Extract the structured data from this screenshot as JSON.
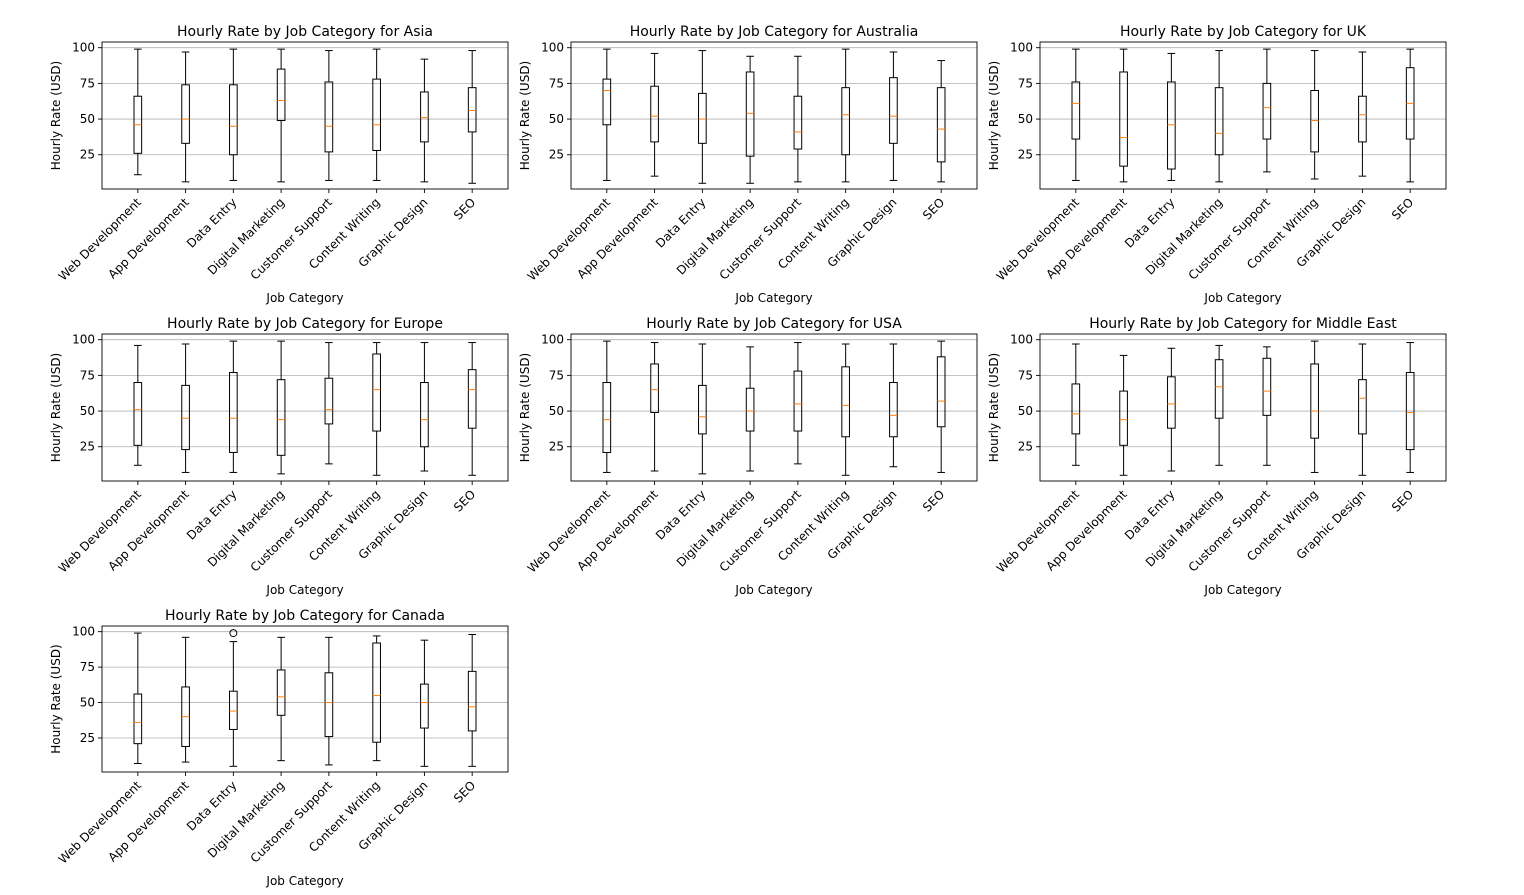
{
  "chart_data": [
    {
      "type": "box",
      "title": "Hourly Rate by Job Category for Asia",
      "xlabel": "Job Category",
      "ylabel": "Hourly Rate (USD)",
      "yticks": [
        25,
        50,
        75,
        100
      ],
      "ylim": [
        1,
        104
      ],
      "grid": "y",
      "categories": [
        "Web Development",
        "App Development",
        "Data Entry",
        "Digital Marketing",
        "Customer Support",
        "Content Writing",
        "Graphic Design",
        "SEO"
      ],
      "boxes": [
        {
          "min": 11,
          "q1": 26,
          "median": 46,
          "q3": 66,
          "max": 99
        },
        {
          "min": 6,
          "q1": 33,
          "median": 50,
          "q3": 74,
          "max": 97
        },
        {
          "min": 7,
          "q1": 25,
          "median": 45,
          "q3": 74,
          "max": 99
        },
        {
          "min": 6,
          "q1": 49,
          "median": 63,
          "q3": 85,
          "max": 99
        },
        {
          "min": 7,
          "q1": 27,
          "median": 45,
          "q3": 76,
          "max": 98
        },
        {
          "min": 7,
          "q1": 28,
          "median": 46,
          "q3": 78,
          "max": 99
        },
        {
          "min": 6,
          "q1": 34,
          "median": 51,
          "q3": 69,
          "max": 92
        },
        {
          "min": 5,
          "q1": 41,
          "median": 56,
          "q3": 72,
          "max": 98
        }
      ],
      "outliers": []
    },
    {
      "type": "box",
      "title": "Hourly Rate by Job Category for Australia",
      "xlabel": "Job Category",
      "ylabel": "Hourly Rate (USD)",
      "yticks": [
        25,
        50,
        75,
        100
      ],
      "ylim": [
        1,
        104
      ],
      "grid": "y",
      "categories": [
        "Web Development",
        "App Development",
        "Data Entry",
        "Digital Marketing",
        "Customer Support",
        "Content Writing",
        "Graphic Design",
        "SEO"
      ],
      "boxes": [
        {
          "min": 7,
          "q1": 46,
          "median": 70,
          "q3": 78,
          "max": 99
        },
        {
          "min": 10,
          "q1": 34,
          "median": 52,
          "q3": 73,
          "max": 96
        },
        {
          "min": 5,
          "q1": 33,
          "median": 50,
          "q3": 68,
          "max": 98
        },
        {
          "min": 5,
          "q1": 24,
          "median": 54,
          "q3": 83,
          "max": 94
        },
        {
          "min": 6,
          "q1": 29,
          "median": 41,
          "q3": 66,
          "max": 94
        },
        {
          "min": 6,
          "q1": 25,
          "median": 53,
          "q3": 72,
          "max": 99
        },
        {
          "min": 7,
          "q1": 33,
          "median": 52,
          "q3": 79,
          "max": 97
        },
        {
          "min": 6,
          "q1": 20,
          "median": 43,
          "q3": 72,
          "max": 91
        }
      ],
      "outliers": []
    },
    {
      "type": "box",
      "title": "Hourly Rate by Job Category for UK",
      "xlabel": "Job Category",
      "ylabel": "Hourly Rate (USD)",
      "yticks": [
        25,
        50,
        75,
        100
      ],
      "ylim": [
        1,
        104
      ],
      "grid": "y",
      "categories": [
        "Web Development",
        "App Development",
        "Data Entry",
        "Digital Marketing",
        "Customer Support",
        "Content Writing",
        "Graphic Design",
        "SEO"
      ],
      "boxes": [
        {
          "min": 7,
          "q1": 36,
          "median": 61,
          "q3": 76,
          "max": 99
        },
        {
          "min": 6,
          "q1": 17,
          "median": 37,
          "q3": 83,
          "max": 99
        },
        {
          "min": 7,
          "q1": 15,
          "median": 46,
          "q3": 76,
          "max": 96
        },
        {
          "min": 6,
          "q1": 25,
          "median": 40,
          "q3": 72,
          "max": 98
        },
        {
          "min": 13,
          "q1": 36,
          "median": 58,
          "q3": 75,
          "max": 99
        },
        {
          "min": 8,
          "q1": 27,
          "median": 49,
          "q3": 70,
          "max": 98
        },
        {
          "min": 10,
          "q1": 34,
          "median": 53,
          "q3": 66,
          "max": 97
        },
        {
          "min": 6,
          "q1": 36,
          "median": 61,
          "q3": 86,
          "max": 99
        }
      ],
      "outliers": []
    },
    {
      "type": "box",
      "title": "Hourly Rate by Job Category for Europe",
      "xlabel": "Job Category",
      "ylabel": "Hourly Rate (USD)",
      "yticks": [
        25,
        50,
        75,
        100
      ],
      "ylim": [
        1,
        104
      ],
      "grid": "y",
      "categories": [
        "Web Development",
        "App Development",
        "Data Entry",
        "Digital Marketing",
        "Customer Support",
        "Content Writing",
        "Graphic Design",
        "SEO"
      ],
      "boxes": [
        {
          "min": 12,
          "q1": 26,
          "median": 51,
          "q3": 70,
          "max": 96
        },
        {
          "min": 7,
          "q1": 23,
          "median": 45,
          "q3": 68,
          "max": 97
        },
        {
          "min": 7,
          "q1": 21,
          "median": 45,
          "q3": 77,
          "max": 99
        },
        {
          "min": 6,
          "q1": 19,
          "median": 44,
          "q3": 72,
          "max": 99
        },
        {
          "min": 13,
          "q1": 41,
          "median": 51,
          "q3": 73,
          "max": 98
        },
        {
          "min": 5,
          "q1": 36,
          "median": 65,
          "q3": 90,
          "max": 98
        },
        {
          "min": 8,
          "q1": 25,
          "median": 44,
          "q3": 70,
          "max": 98
        },
        {
          "min": 5,
          "q1": 38,
          "median": 65,
          "q3": 79,
          "max": 98
        }
      ],
      "outliers": []
    },
    {
      "type": "box",
      "title": "Hourly Rate by Job Category for USA",
      "xlabel": "Job Category",
      "ylabel": "Hourly Rate (USD)",
      "yticks": [
        25,
        50,
        75,
        100
      ],
      "ylim": [
        1,
        104
      ],
      "grid": "y",
      "categories": [
        "Web Development",
        "App Development",
        "Data Entry",
        "Digital Marketing",
        "Customer Support",
        "Content Writing",
        "Graphic Design",
        "SEO"
      ],
      "boxes": [
        {
          "min": 7,
          "q1": 21,
          "median": 44,
          "q3": 70,
          "max": 99
        },
        {
          "min": 8,
          "q1": 49,
          "median": 65,
          "q3": 83,
          "max": 98
        },
        {
          "min": 6,
          "q1": 34,
          "median": 46,
          "q3": 68,
          "max": 97
        },
        {
          "min": 8,
          "q1": 36,
          "median": 50,
          "q3": 66,
          "max": 95
        },
        {
          "min": 13,
          "q1": 36,
          "median": 55,
          "q3": 78,
          "max": 98
        },
        {
          "min": 5,
          "q1": 32,
          "median": 54,
          "q3": 81,
          "max": 97
        },
        {
          "min": 11,
          "q1": 32,
          "median": 47,
          "q3": 70,
          "max": 97
        },
        {
          "min": 7,
          "q1": 39,
          "median": 57,
          "q3": 88,
          "max": 99
        }
      ],
      "outliers": []
    },
    {
      "type": "box",
      "title": "Hourly Rate by Job Category for Middle East",
      "xlabel": "Job Category",
      "ylabel": "Hourly Rate (USD)",
      "yticks": [
        25,
        50,
        75,
        100
      ],
      "ylim": [
        1,
        104
      ],
      "grid": "y",
      "categories": [
        "Web Development",
        "App Development",
        "Data Entry",
        "Digital Marketing",
        "Customer Support",
        "Content Writing",
        "Graphic Design",
        "SEO"
      ],
      "boxes": [
        {
          "min": 12,
          "q1": 34,
          "median": 48,
          "q3": 69,
          "max": 97
        },
        {
          "min": 5,
          "q1": 26,
          "median": 44,
          "q3": 64,
          "max": 89
        },
        {
          "min": 8,
          "q1": 38,
          "median": 55,
          "q3": 74,
          "max": 94
        },
        {
          "min": 12,
          "q1": 45,
          "median": 67,
          "q3": 86,
          "max": 96
        },
        {
          "min": 12,
          "q1": 47,
          "median": 64,
          "q3": 87,
          "max": 95
        },
        {
          "min": 7,
          "q1": 31,
          "median": 50,
          "q3": 83,
          "max": 99
        },
        {
          "min": 5,
          "q1": 34,
          "median": 59,
          "q3": 72,
          "max": 97
        },
        {
          "min": 7,
          "q1": 23,
          "median": 49,
          "q3": 77,
          "max": 98
        }
      ],
      "outliers": []
    },
    {
      "type": "box",
      "title": "Hourly Rate by Job Category for Canada",
      "xlabel": "Job Category",
      "ylabel": "Hourly Rate (USD)",
      "yticks": [
        25,
        50,
        75,
        100
      ],
      "ylim": [
        1,
        104
      ],
      "grid": "y",
      "categories": [
        "Web Development",
        "App Development",
        "Data Entry",
        "Digital Marketing",
        "Customer Support",
        "Content Writing",
        "Graphic Design",
        "SEO"
      ],
      "boxes": [
        {
          "min": 7,
          "q1": 21,
          "median": 36,
          "q3": 56,
          "max": 99
        },
        {
          "min": 8,
          "q1": 19,
          "median": 40,
          "q3": 61,
          "max": 96
        },
        {
          "min": 5,
          "q1": 31,
          "median": 44,
          "q3": 58,
          "max": 93
        },
        {
          "min": 9,
          "q1": 41,
          "median": 54,
          "q3": 73,
          "max": 96
        },
        {
          "min": 6,
          "q1": 26,
          "median": 50,
          "q3": 71,
          "max": 96
        },
        {
          "min": 9,
          "q1": 22,
          "median": 55,
          "q3": 92,
          "max": 97
        },
        {
          "min": 5,
          "q1": 32,
          "median": 50,
          "q3": 63,
          "max": 94
        },
        {
          "min": 5,
          "q1": 30,
          "median": 47,
          "q3": 72,
          "max": 98
        }
      ],
      "outliers": [
        {
          "category": "Data Entry",
          "value": 99
        }
      ]
    }
  ],
  "colors": {
    "box": "#000000",
    "median": "#ff7f0e",
    "grid": "#b0b0b0"
  }
}
